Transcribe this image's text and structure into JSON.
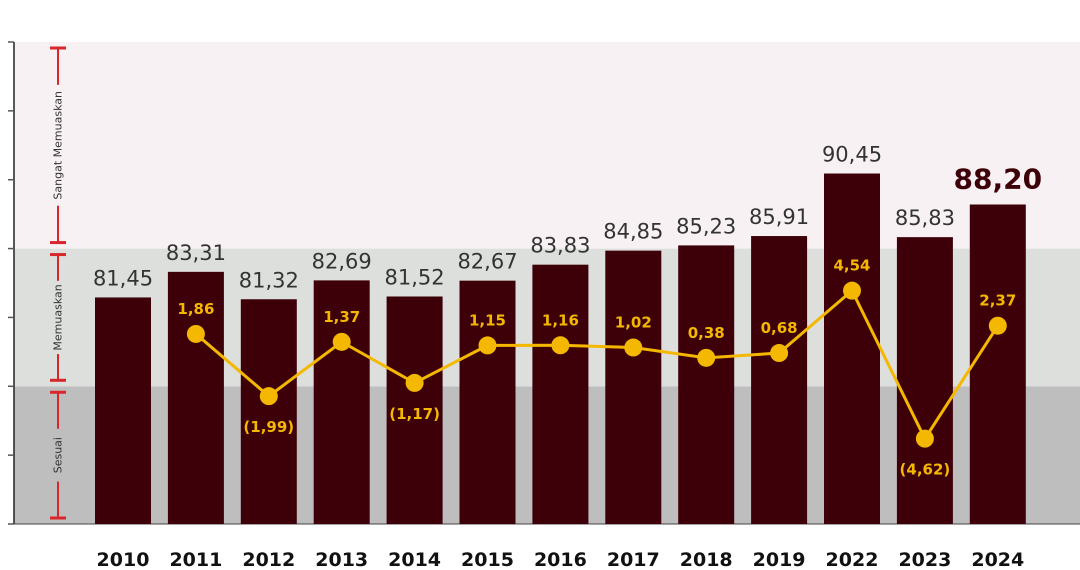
{
  "chart_data": {
    "type": "bar",
    "categories": [
      "2010",
      "2011",
      "2012",
      "2013",
      "2014",
      "2015",
      "2016",
      "2017",
      "2018",
      "2019",
      "2022",
      "2023",
      "2024"
    ],
    "series": [
      {
        "type": "bar",
        "values": [
          81.45,
          83.31,
          81.32,
          82.69,
          81.52,
          82.67,
          83.83,
          84.85,
          85.23,
          85.91,
          90.45,
          85.83,
          88.2
        ],
        "labels": [
          "81,45",
          "83,31",
          "81,32",
          "82,69",
          "81,52",
          "82,67",
          "83,83",
          "84,85",
          "85,23",
          "85,91",
          "90,45",
          "85,83",
          "88,20"
        ],
        "color": "#3d0008"
      },
      {
        "type": "line",
        "values": [
          null,
          1.86,
          -1.99,
          1.37,
          -1.17,
          1.15,
          1.16,
          1.02,
          0.38,
          0.68,
          4.54,
          -4.62,
          2.37
        ],
        "labels": [
          "",
          "1,86",
          "(1,99)",
          "1,37",
          "(1,17)",
          "1,15",
          "1,16",
          "1,02",
          "0,38",
          "0,68",
          "4,54",
          "(4,62)",
          "2,37"
        ],
        "color": "#f5b800"
      }
    ],
    "ylim": [
      65,
      100
    ],
    "yticks": [
      65,
      70,
      75,
      80,
      85,
      90,
      95,
      100
    ],
    "line_ylim": [
      -8.8,
      19.3
    ],
    "bands": [
      {
        "label": "Sesuai",
        "from": 65,
        "to": 75,
        "color": "#bebebe"
      },
      {
        "label": "Memuaskan",
        "from": 75,
        "to": 85,
        "color": "#dcdfdc"
      },
      {
        "label": "Sangat Memuaskan",
        "from": 85,
        "to": 100,
        "color": "#f7f1f4"
      }
    ],
    "band_marker_color": "#d9262b",
    "highlight_last": true,
    "grid": false,
    "title": "",
    "xlabel": "",
    "ylabel": ""
  }
}
